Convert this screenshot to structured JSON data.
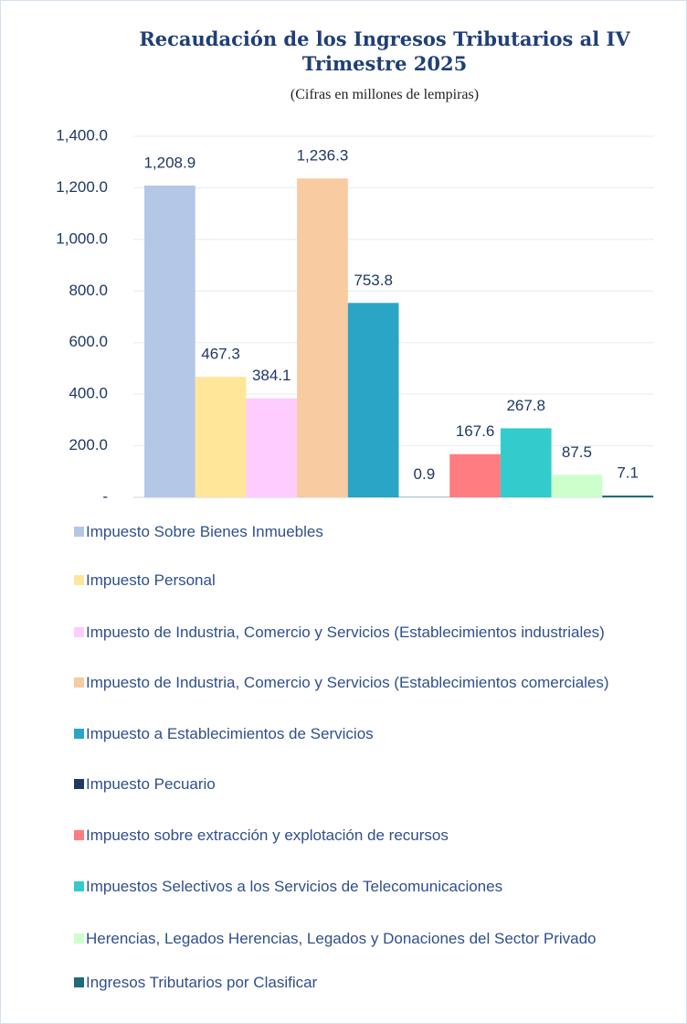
{
  "chart_data": {
    "type": "bar",
    "title": "Recaudación de los Ingresos Tributarios al IV Trimestre 2025",
    "subtitle": "(Cifras en millones de lempiras)",
    "categories": [
      null
    ],
    "ylim": [
      0,
      1400
    ],
    "yticks": [
      {
        "value": 0,
        "label": "-"
      },
      {
        "value": 200,
        "label": "200.0"
      },
      {
        "value": 400,
        "label": "400.0"
      },
      {
        "value": 600,
        "label": "600.0"
      },
      {
        "value": 800,
        "label": "800.0"
      },
      {
        "value": 1000,
        "label": "1,000.0"
      },
      {
        "value": 1200,
        "label": "1,200.0"
      },
      {
        "value": 1400,
        "label": "1,400.0"
      }
    ],
    "grid": true,
    "legend": "bottom",
    "series": [
      {
        "name": "Impuesto Sobre Bienes Inmuebles",
        "color": "#b4c7e7",
        "values": [
          1208.9
        ],
        "value_labels": [
          "1,208.9"
        ]
      },
      {
        "name": "Impuesto Personal",
        "color": "#ffe699",
        "values": [
          467.3
        ]
      },
      {
        "name": "Impuesto de Industria, Comercio y Servicios (Establecimientos industriales)",
        "color": "#ffccff",
        "values": [
          384.1
        ]
      },
      {
        "name": "Impuesto de Industria, Comercio y Servicios (Establecimientos comerciales)",
        "color": "#f8cba0",
        "values": [
          1236.3
        ],
        "value_labels": [
          "1,236.3"
        ]
      },
      {
        "name": "Impuesto a Establecimientos de Servicios",
        "color": "#2aa5c6",
        "values": [
          753.8
        ]
      },
      {
        "name": "Impuesto Pecuario",
        "color": "#1f3864",
        "values": [
          0.9
        ]
      },
      {
        "name": "Impuesto sobre extracción y explotación de recursos",
        "color": "#ff7c80",
        "values": [
          167.6
        ]
      },
      {
        "name": "Impuestos Selectivos a los Servicios de Telecomunicaciones",
        "color": "#33cccc",
        "values": [
          267.8
        ]
      },
      {
        "name": "Herencias, Legados Herencias, Legados y Donaciones del Sector Privado",
        "color": "#ccffcc",
        "values": [
          87.5
        ]
      },
      {
        "name": "Ingresos Tributarios por Clasificar",
        "color": "#1f6b7a",
        "values": [
          7.1
        ]
      }
    ]
  }
}
